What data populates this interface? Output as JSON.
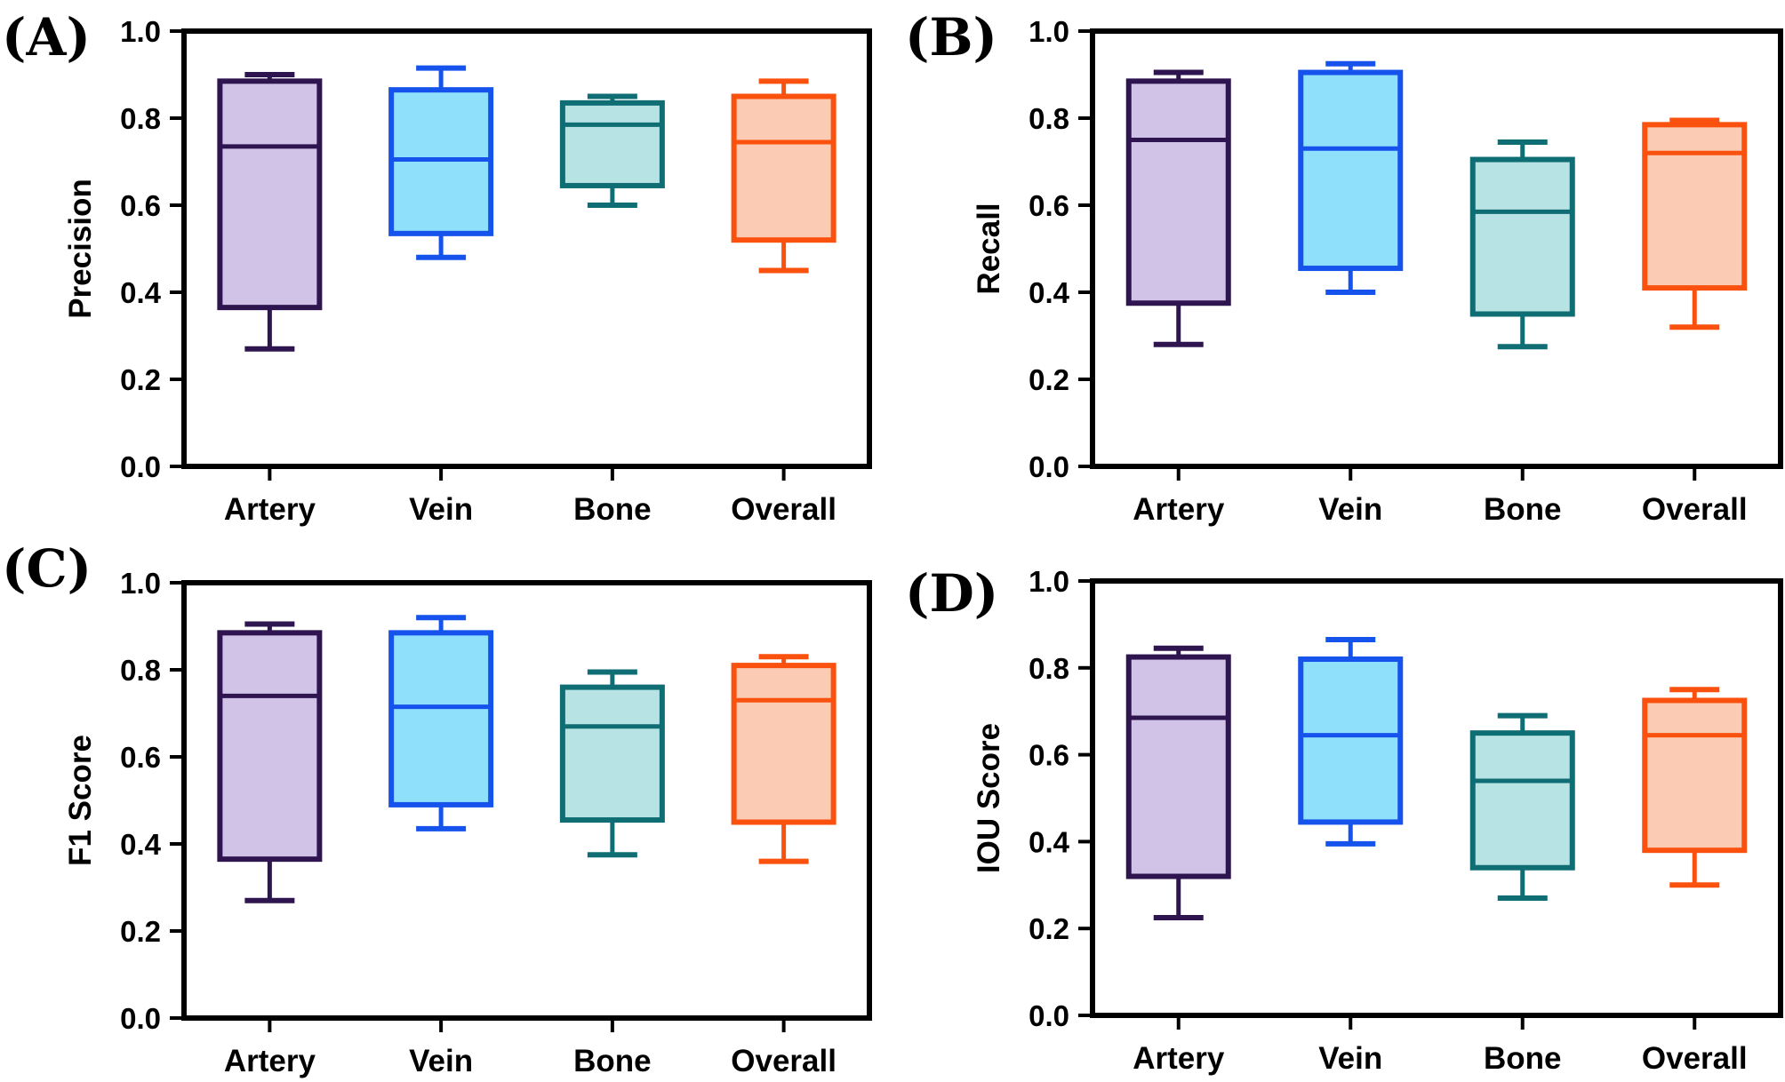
{
  "chart_data": [
    {
      "type": "box",
      "panel_label": "(A)",
      "ylabel": "Precision",
      "ylim": [
        0,
        1.0
      ],
      "yticks": [
        "0.0",
        "0.2",
        "0.4",
        "0.6",
        "0.8",
        "1.0"
      ],
      "categories": [
        "Artery",
        "Vein",
        "Bone",
        "Overall"
      ],
      "boxes": [
        {
          "min": 0.27,
          "q1": 0.365,
          "median": 0.735,
          "q3": 0.885,
          "max": 0.9
        },
        {
          "min": 0.48,
          "q1": 0.535,
          "median": 0.705,
          "q3": 0.865,
          "max": 0.915
        },
        {
          "min": 0.6,
          "q1": 0.645,
          "median": 0.785,
          "q3": 0.835,
          "max": 0.85
        },
        {
          "min": 0.45,
          "q1": 0.52,
          "median": 0.745,
          "q3": 0.85,
          "max": 0.885
        }
      ]
    },
    {
      "type": "box",
      "panel_label": "(B)",
      "ylabel": "Recall",
      "ylim": [
        0,
        1.0
      ],
      "yticks": [
        "0.0",
        "0.2",
        "0.4",
        "0.6",
        "0.8",
        "1.0"
      ],
      "categories": [
        "Artery",
        "Vein",
        "Bone",
        "Overall"
      ],
      "boxes": [
        {
          "min": 0.28,
          "q1": 0.375,
          "median": 0.75,
          "q3": 0.885,
          "max": 0.905
        },
        {
          "min": 0.4,
          "q1": 0.455,
          "median": 0.73,
          "q3": 0.905,
          "max": 0.925
        },
        {
          "min": 0.275,
          "q1": 0.35,
          "median": 0.585,
          "q3": 0.705,
          "max": 0.745
        },
        {
          "min": 0.32,
          "q1": 0.41,
          "median": 0.72,
          "q3": 0.785,
          "max": 0.795
        }
      ]
    },
    {
      "type": "box",
      "panel_label": "(C)",
      "ylabel": "F1 Score",
      "ylim": [
        0,
        1.0
      ],
      "yticks": [
        "0.0",
        "0.2",
        "0.4",
        "0.6",
        "0.8",
        "1.0"
      ],
      "categories": [
        "Artery",
        "Vein",
        "Bone",
        "Overall"
      ],
      "boxes": [
        {
          "min": 0.27,
          "q1": 0.365,
          "median": 0.74,
          "q3": 0.885,
          "max": 0.905
        },
        {
          "min": 0.435,
          "q1": 0.49,
          "median": 0.715,
          "q3": 0.885,
          "max": 0.92
        },
        {
          "min": 0.375,
          "q1": 0.455,
          "median": 0.67,
          "q3": 0.76,
          "max": 0.795
        },
        {
          "min": 0.36,
          "q1": 0.45,
          "median": 0.73,
          "q3": 0.81,
          "max": 0.83
        }
      ]
    },
    {
      "type": "box",
      "panel_label": "(D)",
      "ylabel": "IOU Score",
      "ylim": [
        0,
        1.0
      ],
      "yticks": [
        "0.0",
        "0.2",
        "0.4",
        "0.6",
        "0.8",
        "1.0"
      ],
      "categories": [
        "Artery",
        "Vein",
        "Bone",
        "Overall"
      ],
      "boxes": [
        {
          "min": 0.225,
          "q1": 0.32,
          "median": 0.685,
          "q3": 0.825,
          "max": 0.845
        },
        {
          "min": 0.395,
          "q1": 0.445,
          "median": 0.645,
          "q3": 0.82,
          "max": 0.865
        },
        {
          "min": 0.27,
          "q1": 0.34,
          "median": 0.54,
          "q3": 0.65,
          "max": 0.69
        },
        {
          "min": 0.3,
          "q1": 0.38,
          "median": 0.645,
          "q3": 0.725,
          "max": 0.75
        }
      ]
    }
  ],
  "colors": {
    "Artery": {
      "stroke": "#2e1550",
      "fill": "#d1c3e8"
    },
    "Vein": {
      "stroke": "#1553ec",
      "fill": "#8ee0fb"
    },
    "Bone": {
      "stroke": "#0f6d74",
      "fill": "#b8e3e4"
    },
    "Overall": {
      "stroke": "#fa520e",
      "fill": "#fbcbb3"
    }
  }
}
